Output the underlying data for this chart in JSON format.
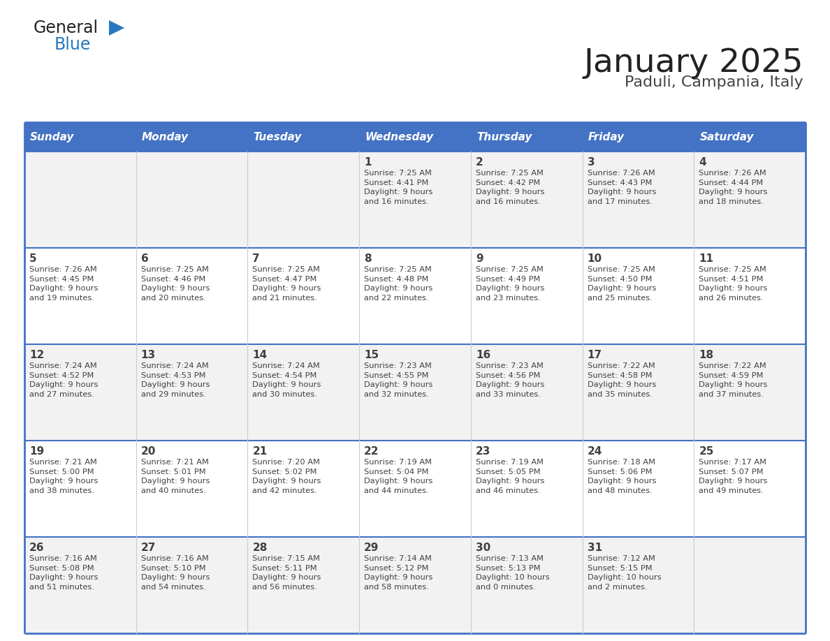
{
  "title": "January 2025",
  "subtitle": "Paduli, Campania, Italy",
  "header_bg": "#4472C4",
  "header_text_color": "#FFFFFF",
  "cell_bg_odd": "#F2F2F2",
  "cell_bg_even": "#FFFFFF",
  "border_color": "#4472C4",
  "text_color": "#404040",
  "days_of_week": [
    "Sunday",
    "Monday",
    "Tuesday",
    "Wednesday",
    "Thursday",
    "Friday",
    "Saturday"
  ],
  "weeks": [
    [
      {
        "day": "",
        "info": ""
      },
      {
        "day": "",
        "info": ""
      },
      {
        "day": "",
        "info": ""
      },
      {
        "day": "1",
        "info": "Sunrise: 7:25 AM\nSunset: 4:41 PM\nDaylight: 9 hours\nand 16 minutes."
      },
      {
        "day": "2",
        "info": "Sunrise: 7:25 AM\nSunset: 4:42 PM\nDaylight: 9 hours\nand 16 minutes."
      },
      {
        "day": "3",
        "info": "Sunrise: 7:26 AM\nSunset: 4:43 PM\nDaylight: 9 hours\nand 17 minutes."
      },
      {
        "day": "4",
        "info": "Sunrise: 7:26 AM\nSunset: 4:44 PM\nDaylight: 9 hours\nand 18 minutes."
      }
    ],
    [
      {
        "day": "5",
        "info": "Sunrise: 7:26 AM\nSunset: 4:45 PM\nDaylight: 9 hours\nand 19 minutes."
      },
      {
        "day": "6",
        "info": "Sunrise: 7:25 AM\nSunset: 4:46 PM\nDaylight: 9 hours\nand 20 minutes."
      },
      {
        "day": "7",
        "info": "Sunrise: 7:25 AM\nSunset: 4:47 PM\nDaylight: 9 hours\nand 21 minutes."
      },
      {
        "day": "8",
        "info": "Sunrise: 7:25 AM\nSunset: 4:48 PM\nDaylight: 9 hours\nand 22 minutes."
      },
      {
        "day": "9",
        "info": "Sunrise: 7:25 AM\nSunset: 4:49 PM\nDaylight: 9 hours\nand 23 minutes."
      },
      {
        "day": "10",
        "info": "Sunrise: 7:25 AM\nSunset: 4:50 PM\nDaylight: 9 hours\nand 25 minutes."
      },
      {
        "day": "11",
        "info": "Sunrise: 7:25 AM\nSunset: 4:51 PM\nDaylight: 9 hours\nand 26 minutes."
      }
    ],
    [
      {
        "day": "12",
        "info": "Sunrise: 7:24 AM\nSunset: 4:52 PM\nDaylight: 9 hours\nand 27 minutes."
      },
      {
        "day": "13",
        "info": "Sunrise: 7:24 AM\nSunset: 4:53 PM\nDaylight: 9 hours\nand 29 minutes."
      },
      {
        "day": "14",
        "info": "Sunrise: 7:24 AM\nSunset: 4:54 PM\nDaylight: 9 hours\nand 30 minutes."
      },
      {
        "day": "15",
        "info": "Sunrise: 7:23 AM\nSunset: 4:55 PM\nDaylight: 9 hours\nand 32 minutes."
      },
      {
        "day": "16",
        "info": "Sunrise: 7:23 AM\nSunset: 4:56 PM\nDaylight: 9 hours\nand 33 minutes."
      },
      {
        "day": "17",
        "info": "Sunrise: 7:22 AM\nSunset: 4:58 PM\nDaylight: 9 hours\nand 35 minutes."
      },
      {
        "day": "18",
        "info": "Sunrise: 7:22 AM\nSunset: 4:59 PM\nDaylight: 9 hours\nand 37 minutes."
      }
    ],
    [
      {
        "day": "19",
        "info": "Sunrise: 7:21 AM\nSunset: 5:00 PM\nDaylight: 9 hours\nand 38 minutes."
      },
      {
        "day": "20",
        "info": "Sunrise: 7:21 AM\nSunset: 5:01 PM\nDaylight: 9 hours\nand 40 minutes."
      },
      {
        "day": "21",
        "info": "Sunrise: 7:20 AM\nSunset: 5:02 PM\nDaylight: 9 hours\nand 42 minutes."
      },
      {
        "day": "22",
        "info": "Sunrise: 7:19 AM\nSunset: 5:04 PM\nDaylight: 9 hours\nand 44 minutes."
      },
      {
        "day": "23",
        "info": "Sunrise: 7:19 AM\nSunset: 5:05 PM\nDaylight: 9 hours\nand 46 minutes."
      },
      {
        "day": "24",
        "info": "Sunrise: 7:18 AM\nSunset: 5:06 PM\nDaylight: 9 hours\nand 48 minutes."
      },
      {
        "day": "25",
        "info": "Sunrise: 7:17 AM\nSunset: 5:07 PM\nDaylight: 9 hours\nand 49 minutes."
      }
    ],
    [
      {
        "day": "26",
        "info": "Sunrise: 7:16 AM\nSunset: 5:08 PM\nDaylight: 9 hours\nand 51 minutes."
      },
      {
        "day": "27",
        "info": "Sunrise: 7:16 AM\nSunset: 5:10 PM\nDaylight: 9 hours\nand 54 minutes."
      },
      {
        "day": "28",
        "info": "Sunrise: 7:15 AM\nSunset: 5:11 PM\nDaylight: 9 hours\nand 56 minutes."
      },
      {
        "day": "29",
        "info": "Sunrise: 7:14 AM\nSunset: 5:12 PM\nDaylight: 9 hours\nand 58 minutes."
      },
      {
        "day": "30",
        "info": "Sunrise: 7:13 AM\nSunset: 5:13 PM\nDaylight: 10 hours\nand 0 minutes."
      },
      {
        "day": "31",
        "info": "Sunrise: 7:12 AM\nSunset: 5:15 PM\nDaylight: 10 hours\nand 2 minutes."
      },
      {
        "day": "",
        "info": ""
      }
    ]
  ],
  "logo_general_color": "#222222",
  "logo_blue_color": "#2878BE",
  "logo_triangle_color": "#2878BE",
  "title_color": "#222222",
  "subtitle_color": "#444444"
}
